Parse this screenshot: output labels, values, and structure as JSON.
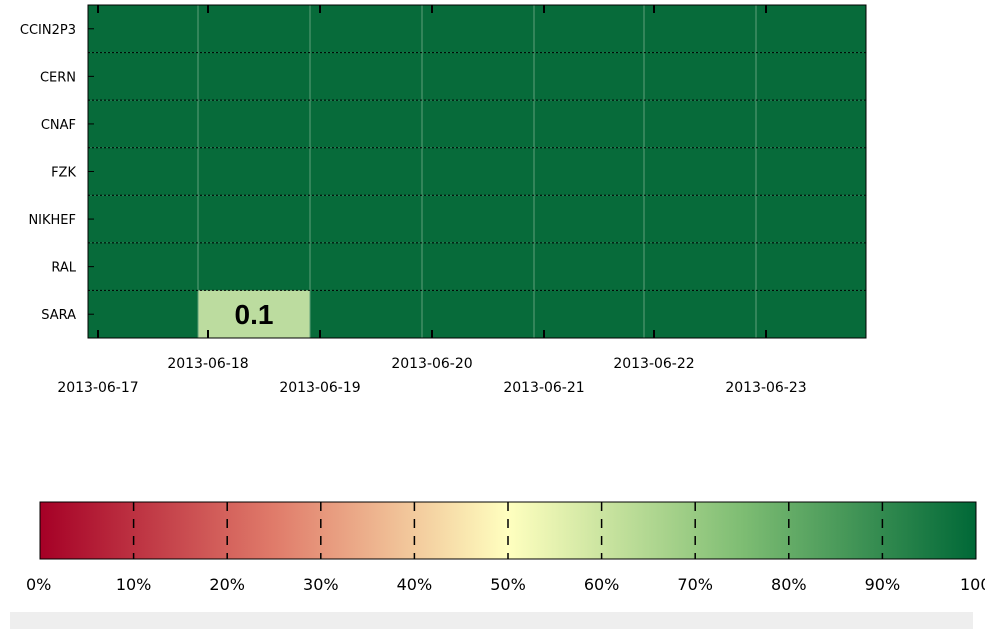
{
  "chart_data": {
    "type": "heatmap",
    "rows": [
      "CCIN2P3",
      "CERN",
      "CNAF",
      "FZK",
      "NIKHEF",
      "RAL",
      "SARA"
    ],
    "columns": [
      "2013-06-17",
      "2013-06-18",
      "2013-06-19",
      "2013-06-20",
      "2013-06-21",
      "2013-06-22",
      "2013-06-23"
    ],
    "x_tick_labels": [
      "2013-06-17",
      "2013-06-18",
      "2013-06-19",
      "2013-06-20",
      "2013-06-21",
      "2013-06-22",
      "2013-06-23"
    ],
    "values": [
      [
        100,
        100,
        100,
        100,
        100,
        100,
        100
      ],
      [
        100,
        100,
        100,
        100,
        100,
        100,
        100
      ],
      [
        100,
        100,
        100,
        100,
        100,
        100,
        100
      ],
      [
        100,
        100,
        100,
        100,
        100,
        100,
        100
      ],
      [
        100,
        100,
        100,
        100,
        100,
        100,
        100
      ],
      [
        100,
        100,
        100,
        100,
        100,
        100,
        100
      ],
      [
        100,
        60,
        100,
        100,
        100,
        100,
        100
      ]
    ],
    "annotations": [
      {
        "row": "SARA",
        "column": "2013-06-18",
        "text": "0.1"
      }
    ],
    "colorbar": {
      "min": 0,
      "max": 100,
      "tick_labels": [
        "0%",
        "10%",
        "20%",
        "30%",
        "40%",
        "50%",
        "60%",
        "70%",
        "80%",
        "90%",
        "100%"
      ],
      "stops": [
        {
          "value": 0,
          "color": "#a50026"
        },
        {
          "value": 25,
          "color": "#e07b6a"
        },
        {
          "value": 50,
          "color": "#ffffbf"
        },
        {
          "value": 75,
          "color": "#7ebd73"
        },
        {
          "value": 100,
          "color": "#006837"
        }
      ]
    },
    "grid": true,
    "colors": {
      "full": "#076b3a",
      "sara_cell": "#bcdc9f",
      "grid": "#000000"
    }
  }
}
